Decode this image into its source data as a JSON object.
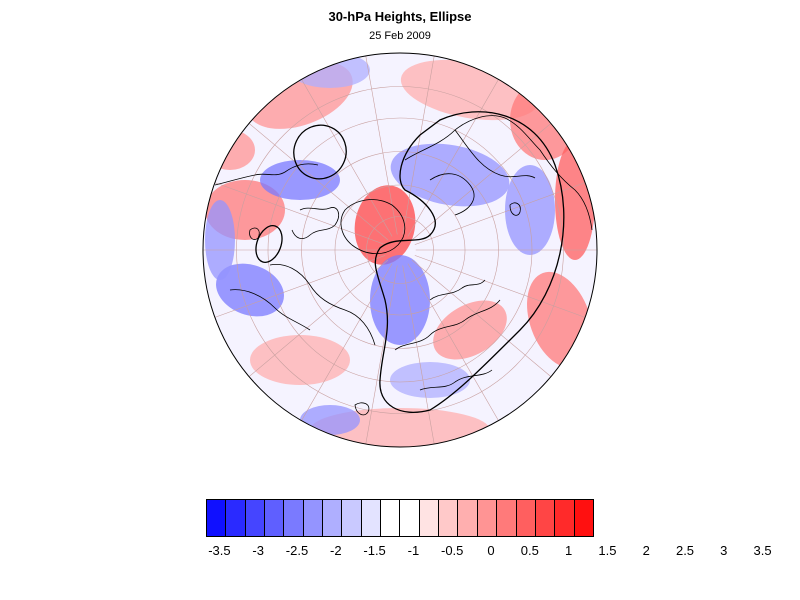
{
  "title": "30-hPa Heights, Ellipse",
  "subtitle": "25 Feb 2009",
  "map": {
    "projection": "north-polar-stereographic",
    "field": "30-hPa height anomaly",
    "contour_overlay": "ellipse"
  },
  "colorbar": {
    "colors": [
      "#1010ff",
      "#2a2aff",
      "#4545ff",
      "#5f5fff",
      "#7a7aff",
      "#9494ff",
      "#afafff",
      "#c9c9ff",
      "#e3e3ff",
      "#ffffff",
      "#ffffff",
      "#ffe3e3",
      "#ffc9c9",
      "#ffafaf",
      "#ff9494",
      "#ff7a7a",
      "#ff5f5f",
      "#ff4545",
      "#ff2a2a",
      "#ff1010"
    ],
    "labels": [
      "-3.5",
      "-3",
      "-2.5",
      "-2",
      "-1.5",
      "-1",
      "-0.5",
      "0",
      "0.5",
      "1",
      "1.5",
      "2",
      "2.5",
      "3",
      "3.5"
    ]
  }
}
